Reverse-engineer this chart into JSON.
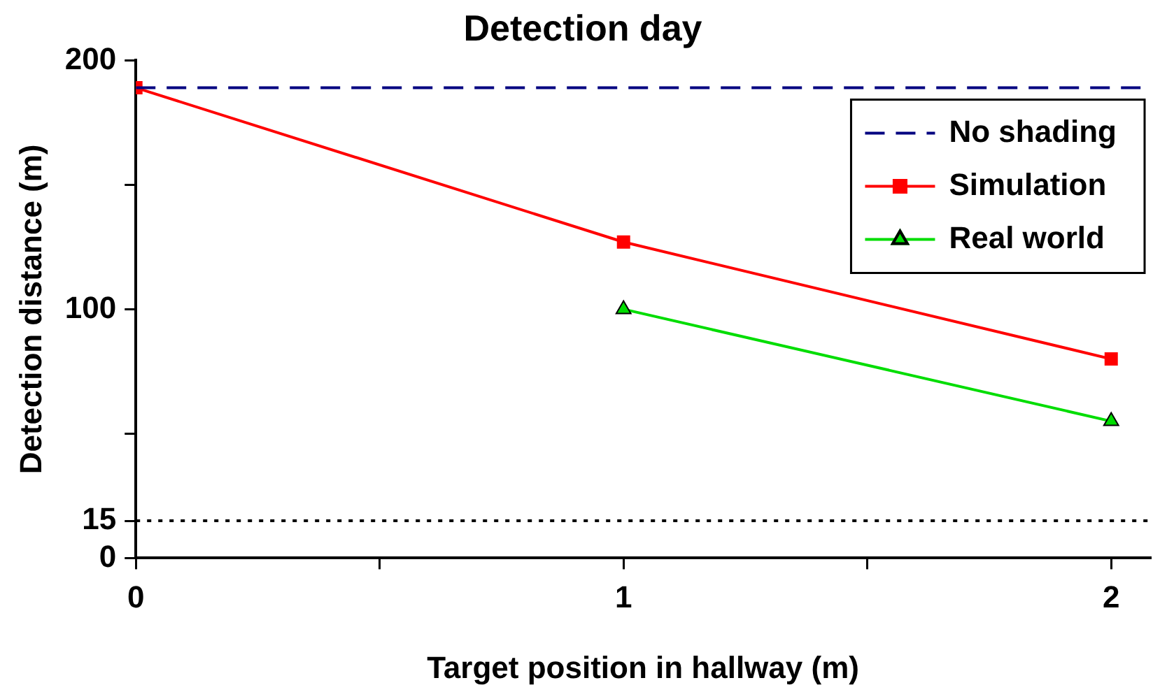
{
  "chart_data": {
    "type": "line",
    "title": "Detection day",
    "xlabel": "Target position in hallway (m)",
    "ylabel": "Detection distance (m)",
    "xlim": [
      0,
      2.08
    ],
    "xticks": [
      0,
      {
        "value": 0.5,
        "label": null
      },
      1,
      {
        "value": 1.5,
        "label": null
      },
      2
    ],
    "ylim": [
      0,
      200
    ],
    "yticks": [
      0,
      15,
      {
        "value": 50,
        "label": null
      },
      100,
      {
        "value": 150,
        "label": null
      },
      200
    ],
    "series": [
      {
        "name": "No shading",
        "color": "#000080",
        "x": [
          0,
          2.08
        ],
        "values": [
          189,
          189
        ],
        "line_style": "dashed",
        "marker": "none"
      },
      {
        "name": "Simulation",
        "color": "#ff0000",
        "x": [
          0,
          1,
          2
        ],
        "values": [
          189,
          127,
          80
        ],
        "line_style": "solid",
        "marker": "square"
      },
      {
        "name": "Real world",
        "color": "#00dd00",
        "x": [
          1,
          2
        ],
        "values": [
          100,
          55
        ],
        "line_style": "solid",
        "marker": "triangle"
      }
    ],
    "ref_lines": [
      {
        "axis": "y",
        "value": 15,
        "label": null,
        "color": "#000000",
        "line_style": "dotted"
      }
    ],
    "grid": false,
    "legend": "top right"
  }
}
